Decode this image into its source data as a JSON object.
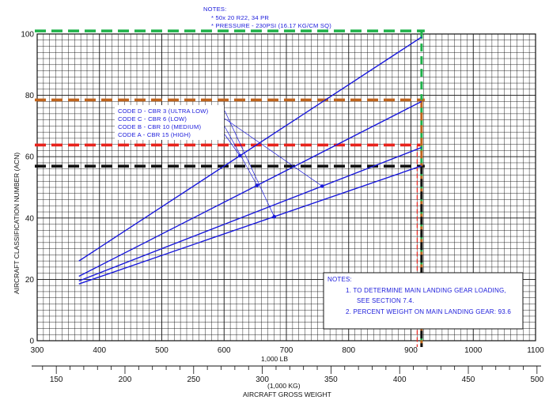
{
  "chart_data": {
    "type": "line",
    "top_notes": {
      "heading": "NOTES:",
      "lines": [
        "*   50x 20 R22, 34 PR",
        "*   PRESSURE - 230PSI (16.17 KG/CM SQ)"
      ]
    },
    "ylabel": "AIRCRAFT CLASSIFICATION NUMBER (ACN)",
    "x_unit_label": "1,000 LB",
    "x2_unit_label": "(1,000 KG)",
    "x2_axis_title": "AIRCRAFT GROSS WEIGHT",
    "xlim": [
      300,
      1100
    ],
    "ylim": [
      0,
      100
    ],
    "x_ticks": [
      "300",
      "400",
      "500",
      "600",
      "700",
      "800",
      "900",
      "1000",
      "1100"
    ],
    "y_ticks": [
      "0",
      "20",
      "40",
      "60",
      "80",
      "100"
    ],
    "kg_ticks": [
      "150",
      "200",
      "250",
      "300",
      "350",
      "400",
      "450",
      "500"
    ],
    "grid": true,
    "series": [
      {
        "name": "CODE A - CBR 15 (HIGH)",
        "x": [
          367,
          917
        ],
        "y": [
          26,
          99
        ]
      },
      {
        "name": "CODE B - CBR 10 (MEDIUM)",
        "x": [
          367,
          917
        ],
        "y": [
          21,
          78
        ]
      },
      {
        "name": "CODE C - CBR 6 (LOW)",
        "x": [
          367,
          917
        ],
        "y": [
          19.5,
          63
        ]
      },
      {
        "name": "CODE D - CBR 3 (ULTRA LOW)",
        "x": [
          367,
          917
        ],
        "y": [
          18.5,
          57
        ]
      }
    ],
    "legend_labels": [
      "CODE D - CBR 3 (ULTRA LOW)",
      "CODE C - CBR 6 (LOW)",
      "CODE B - CBR 10 (MEDIUM)",
      "CODE A - CBR 15 (HIGH)"
    ],
    "reference_lines": [
      {
        "y": 101,
        "color": "#1fb24a"
      },
      {
        "y": 78.5,
        "color": "#c0641c"
      },
      {
        "y": 63.8,
        "color": "#e8231c"
      },
      {
        "y": 56.9,
        "color": "#111111"
      }
    ],
    "reference_verticals": [
      {
        "x": 917,
        "color": "#1fb24a"
      },
      {
        "x": 917,
        "color": "#c0641c"
      },
      {
        "x": 910,
        "color": "#e8231c"
      },
      {
        "x": 917,
        "color": "#111111"
      }
    ],
    "bottom_notes": {
      "heading": "NOTES:",
      "lines": [
        "1.   TO DETERMINE MAIN LANDING GEAR LOADING,",
        "SEE SECTION 7.4.",
        "2.   PERCENT WEIGHT ON MAIN LANDING GEAR:   93.6"
      ]
    }
  }
}
